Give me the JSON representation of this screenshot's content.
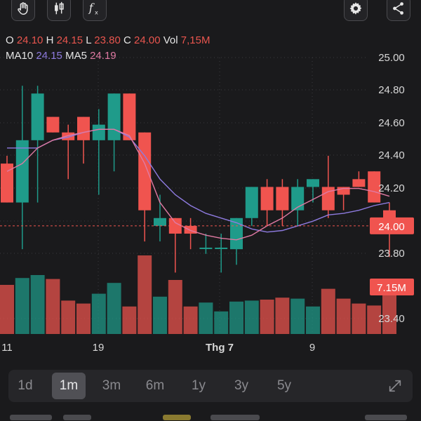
{
  "toolbar": {
    "tools": [
      {
        "name": "draw-hand-icon"
      },
      {
        "name": "candlestick-icon"
      },
      {
        "name": "function-icon"
      },
      {
        "name": "gear-icon"
      },
      {
        "name": "share-icon"
      }
    ]
  },
  "quote": {
    "o_label": "O",
    "o_value": "24.10",
    "h_label": "H",
    "h_value": "24.15",
    "l_label": "L",
    "l_value": "23.80",
    "c_label": "C",
    "c_value": "24.00",
    "vol_label": "Vol",
    "vol_value": "7,15M",
    "ma10_label": "MA10",
    "ma10_value": "24.15",
    "ma5_label": "MA5",
    "ma5_value": "24.19"
  },
  "chart_data": {
    "type": "candlestick",
    "price_ylim": [
      23.4,
      25.0
    ],
    "y_ticks": [
      "25.00",
      "24.80",
      "24.60",
      "24.40",
      "24.20",
      "24.00",
      "23.80",
      "23.40"
    ],
    "x_labels": [
      "11",
      "19",
      "Thg 7",
      "9"
    ],
    "current_price_label": "24.00",
    "current_price": 24.0,
    "current_volume_label": "7.15M",
    "candles": [
      {
        "o": 24.4,
        "h": 24.45,
        "l": 24.15,
        "c": 24.15,
        "v": 0.5
      },
      {
        "o": 24.15,
        "h": 24.9,
        "l": 23.85,
        "c": 24.55,
        "v": 0.57
      },
      {
        "o": 24.55,
        "h": 24.9,
        "l": 24.15,
        "c": 24.85,
        "v": 0.6
      },
      {
        "o": 24.7,
        "h": 24.7,
        "l": 24.6,
        "c": 24.6,
        "v": 0.56
      },
      {
        "o": 24.6,
        "h": 24.65,
        "l": 24.3,
        "c": 24.55,
        "v": 0.34
      },
      {
        "o": 24.7,
        "h": 24.7,
        "l": 24.4,
        "c": 24.55,
        "v": 0.31
      },
      {
        "o": 24.55,
        "h": 24.75,
        "l": 24.2,
        "c": 24.65,
        "v": 0.41
      },
      {
        "o": 24.55,
        "h": 24.85,
        "l": 24.35,
        "c": 24.85,
        "v": 0.52
      },
      {
        "o": 24.85,
        "h": 24.85,
        "l": 24.55,
        "c": 24.55,
        "v": 0.28
      },
      {
        "o": 24.6,
        "h": 24.6,
        "l": 23.9,
        "c": 24.1,
        "v": 0.8
      },
      {
        "o": 24.0,
        "h": 24.2,
        "l": 23.9,
        "c": 24.05,
        "v": 0.38
      },
      {
        "o": 24.05,
        "h": 24.05,
        "l": 23.7,
        "c": 23.95,
        "v": 0.55
      },
      {
        "o": 24.0,
        "h": 24.05,
        "l": 23.85,
        "c": 23.95,
        "v": 0.28
      },
      {
        "o": 23.86,
        "h": 23.95,
        "l": 23.82,
        "c": 23.86,
        "v": 0.32
      },
      {
        "o": 23.86,
        "h": 23.95,
        "l": 23.7,
        "c": 23.86,
        "v": 0.23
      },
      {
        "o": 23.85,
        "h": 24.05,
        "l": 23.75,
        "c": 24.05,
        "v": 0.33
      },
      {
        "o": 24.05,
        "h": 24.25,
        "l": 24.0,
        "c": 24.25,
        "v": 0.34
      },
      {
        "o": 24.25,
        "h": 24.3,
        "l": 24.0,
        "c": 24.1,
        "v": 0.35
      },
      {
        "o": 24.25,
        "h": 24.3,
        "l": 24.0,
        "c": 24.1,
        "v": 0.37
      },
      {
        "o": 24.1,
        "h": 24.3,
        "l": 24.0,
        "c": 24.25,
        "v": 0.36
      },
      {
        "o": 24.25,
        "h": 24.3,
        "l": 24.15,
        "c": 24.3,
        "v": 0.28
      },
      {
        "o": 24.25,
        "h": 24.45,
        "l": 24.05,
        "c": 24.1,
        "v": 0.46
      },
      {
        "o": 24.25,
        "h": 24.25,
        "l": 24.1,
        "c": 24.2,
        "v": 0.36
      },
      {
        "o": 24.3,
        "h": 24.35,
        "l": 24.25,
        "c": 24.25,
        "v": 0.31
      },
      {
        "o": 24.35,
        "h": 24.35,
        "l": 24.15,
        "c": 24.15,
        "v": 0.29
      },
      {
        "o": 24.1,
        "h": 24.15,
        "l": 23.8,
        "c": 24.0,
        "v": 0.4
      }
    ],
    "ma10": [
      24.5,
      24.5,
      24.5,
      24.55,
      24.57,
      24.6,
      24.62,
      24.62,
      24.57,
      24.45,
      24.3,
      24.2,
      24.13,
      24.08,
      24.05,
      24.02,
      23.98,
      23.96,
      23.97,
      24.0,
      24.03,
      24.07,
      24.08,
      24.1,
      24.13,
      24.15
    ],
    "ma5": [
      24.35,
      24.4,
      24.5,
      24.55,
      24.58,
      24.6,
      24.62,
      24.62,
      24.58,
      24.4,
      24.15,
      24.02,
      23.97,
      23.94,
      23.92,
      23.91,
      23.94,
      24.0,
      24.05,
      24.12,
      24.17,
      24.22,
      24.24,
      24.24,
      24.22,
      24.19
    ]
  },
  "timeframes": {
    "items": [
      {
        "label": "1d",
        "active": false
      },
      {
        "label": "1m",
        "active": true
      },
      {
        "label": "3m",
        "active": false
      },
      {
        "label": "6m",
        "active": false
      },
      {
        "label": "1y",
        "active": false
      },
      {
        "label": "3y",
        "active": false
      },
      {
        "label": "5y",
        "active": false
      }
    ]
  },
  "colors": {
    "bull": "#1f9b8a",
    "bear": "#f0544f",
    "ma10": "#8e7be0",
    "ma5": "#e07aa3",
    "grid": "#3a3a3e",
    "axis_text": "#d8d8d8"
  }
}
